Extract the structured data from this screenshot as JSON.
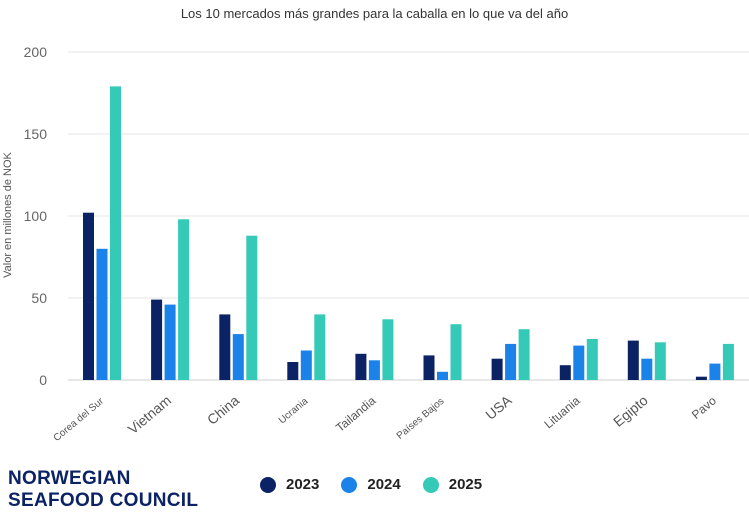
{
  "chart_data": {
    "type": "bar",
    "title": "Los 10 mercados más grandes para la caballa en lo que va del año",
    "xlabel": "",
    "ylabel": "Valor en millones de NOK",
    "ylim": [
      0,
      200
    ],
    "yticks": [
      0,
      50,
      100,
      150,
      200
    ],
    "grid": true,
    "legend_position": "bottom",
    "categories": [
      "Corea del Sur",
      "Vietnam",
      "China",
      "Ucrania",
      "Tailandia",
      "Países Bajos",
      "USA",
      "Lituania",
      "Egipto",
      "Pavo"
    ],
    "series": [
      {
        "name": "2023",
        "color": "#0b2265",
        "values": [
          102,
          49,
          40,
          11,
          16,
          15,
          13,
          9,
          24,
          2
        ]
      },
      {
        "name": "2024",
        "color": "#1a82e8",
        "values": [
          80,
          46,
          28,
          18,
          12,
          5,
          22,
          21,
          13,
          10
        ]
      },
      {
        "name": "2025",
        "color": "#35c9b7",
        "values": [
          179,
          98,
          88,
          40,
          37,
          34,
          31,
          25,
          23,
          22
        ]
      }
    ]
  },
  "brand": {
    "line1": "NORWEGIAN",
    "line2": "SEAFOOD COUNCIL",
    "color1": "#0b2265",
    "color2": "#0b2265"
  }
}
